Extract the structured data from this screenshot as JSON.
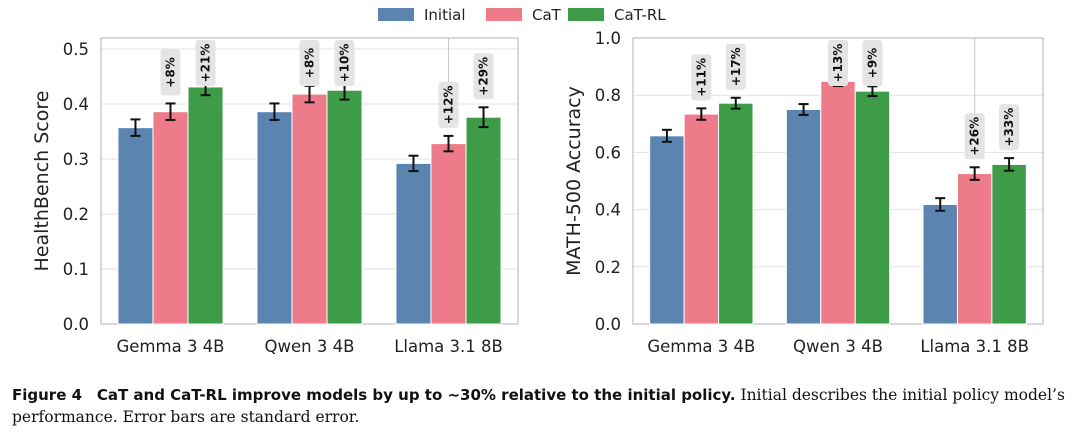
{
  "legend": [
    {
      "label": "Initial",
      "color": "#5b84b1"
    },
    {
      "label": "CaT",
      "color": "#ee7b8a"
    },
    {
      "label": "CaT-RL",
      "color": "#3e9b48"
    }
  ],
  "chart_data": [
    {
      "type": "bar",
      "ylabel": "HealthBench Score",
      "xlabel": "",
      "ylim": [
        0,
        0.52
      ],
      "yticks": [
        0.0,
        0.1,
        0.2,
        0.3,
        0.4,
        0.5
      ],
      "ytick_labels": [
        "0.0",
        "0.1",
        "0.2",
        "0.3",
        "0.4",
        "0.5"
      ],
      "grid": true,
      "categories": [
        "Gemma 3 4B",
        "Qwen 3 4B",
        "Llama 3.1 8B"
      ],
      "series": [
        {
          "name": "Initial",
          "values": [
            0.357,
            0.386,
            0.292
          ],
          "errors": [
            0.015,
            0.015,
            0.014
          ],
          "annotations": [
            "",
            "",
            ""
          ]
        },
        {
          "name": "CaT",
          "values": [
            0.386,
            0.418,
            0.328
          ],
          "errors": [
            0.015,
            0.015,
            0.014
          ],
          "annotations": [
            "+8%",
            "+8%",
            "+12%"
          ]
        },
        {
          "name": "CaT-RL",
          "values": [
            0.431,
            0.425,
            0.376
          ],
          "errors": [
            0.015,
            0.017,
            0.018
          ],
          "annotations": [
            "+21%",
            "+10%",
            "+29%"
          ]
        }
      ]
    },
    {
      "type": "bar",
      "ylabel": "MATH-500 Accuracy",
      "xlabel": "",
      "ylim": [
        0,
        1.0
      ],
      "yticks": [
        0.0,
        0.2,
        0.4,
        0.6,
        0.8,
        1.0
      ],
      "ytick_labels": [
        "0.0",
        "0.2",
        "0.4",
        "0.6",
        "0.8",
        "1.0"
      ],
      "grid": true,
      "categories": [
        "Gemma 3 4B",
        "Qwen 3 4B",
        "Llama 3.1 8B"
      ],
      "series": [
        {
          "name": "Initial",
          "values": [
            0.658,
            0.75,
            0.418
          ],
          "errors": [
            0.021,
            0.019,
            0.022
          ],
          "annotations": [
            "",
            "",
            ""
          ]
        },
        {
          "name": "CaT",
          "values": [
            0.734,
            0.848,
            0.526
          ],
          "errors": [
            0.02,
            0.016,
            0.022
          ],
          "annotations": [
            "+11%",
            "+13%",
            "+26%"
          ]
        },
        {
          "name": "CaT-RL",
          "values": [
            0.772,
            0.814,
            0.558
          ],
          "errors": [
            0.019,
            0.017,
            0.022
          ],
          "annotations": [
            "+17%",
            "+9%",
            "+33%"
          ]
        }
      ]
    }
  ],
  "caption": {
    "label": "Figure 4",
    "bold_text": "CaT and CaT-RL improve models by up to ∼30% relative to the initial policy.",
    "text": "Initial describes the initial policy model’s performance. Error bars are standard error."
  }
}
